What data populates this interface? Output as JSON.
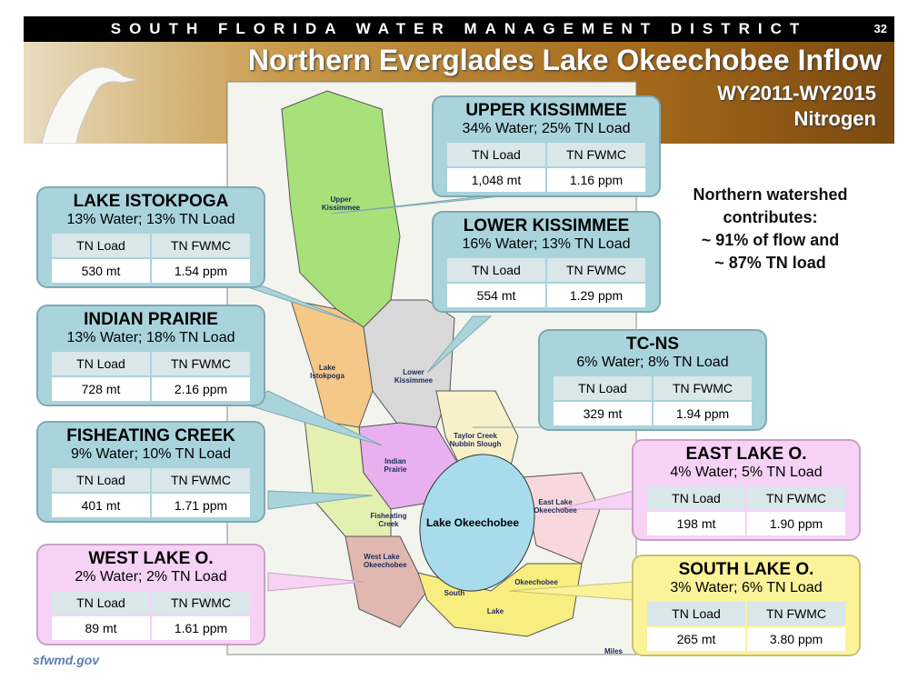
{
  "header": {
    "org": "SOUTH FLORIDA WATER MANAGEMENT DISTRICT",
    "page": "32",
    "title": "Northern Everglades Lake Okeechobee Inflow",
    "subtitle": [
      "WY2011-WY2015",
      "Nitrogen"
    ]
  },
  "note": [
    "Northern watershed",
    "contributes:",
    "~ 91% of flow and",
    "~ 87% TN load"
  ],
  "basins": [
    {
      "name": "UPPER KISSIMMEE",
      "share": "34% Water; 25% TN Load",
      "columns": [
        "TN Load",
        "TN FWMC"
      ],
      "values": [
        "1,048 mt",
        "1.16 ppm"
      ]
    },
    {
      "name": "LAKE ISTOKPOGA",
      "share": "13% Water; 13% TN Load",
      "columns": [
        "TN Load",
        "TN FWMC"
      ],
      "values": [
        "530 mt",
        "1.54 ppm"
      ]
    },
    {
      "name": "LOWER KISSIMMEE",
      "share": "16% Water;  13% TN Load",
      "columns": [
        "TN Load",
        "TN FWMC"
      ],
      "values": [
        "554 mt",
        "1.29 ppm"
      ]
    },
    {
      "name": "INDIAN PRAIRIE",
      "share": "13% Water; 18% TN Load",
      "columns": [
        "TN Load",
        "TN FWMC"
      ],
      "values": [
        "728 mt",
        "2.16 ppm"
      ]
    },
    {
      "name": "TC-NS",
      "share": "6% Water; 8% TN Load",
      "columns": [
        "TN Load",
        "TN FWMC"
      ],
      "values": [
        "329 mt",
        "1.94 ppm"
      ]
    },
    {
      "name": "FISHEATING CREEK",
      "share": "9% Water;  10% TN Load",
      "columns": [
        "TN Load",
        "TN FWMC"
      ],
      "values": [
        "401 mt",
        "1.71 ppm"
      ]
    },
    {
      "name": "EAST LAKE O.",
      "share": "4% Water; 5% TN Load",
      "columns": [
        "TN Load",
        "TN FWMC"
      ],
      "values": [
        "198 mt",
        "1.90 ppm"
      ]
    },
    {
      "name": "WEST LAKE O.",
      "share": "2% Water;  2% TN Load",
      "columns": [
        "TN Load",
        "TN FWMC"
      ],
      "values": [
        "89 mt",
        "1.61 ppm"
      ]
    },
    {
      "name": "SOUTH LAKE O.",
      "share": "3% Water; 6% TN Load",
      "columns": [
        "TN Load",
        "TN FWMC"
      ],
      "values": [
        "265 mt",
        "3.80 ppm"
      ]
    }
  ],
  "map_labels": [
    "Upper Kissimmee",
    "Lake Istokpoga",
    "Lower Kissimmee",
    "Taylor Creek Nubbin Slough",
    "Indian Prairie",
    "Fisheating Creek",
    "Lake Okeechobee",
    "East Lake Okeechobee",
    "West Lake Okeechobee",
    "South",
    "Lake",
    "Okeechobee",
    "Miles"
  ],
  "footer": "sfwmd.gov"
}
